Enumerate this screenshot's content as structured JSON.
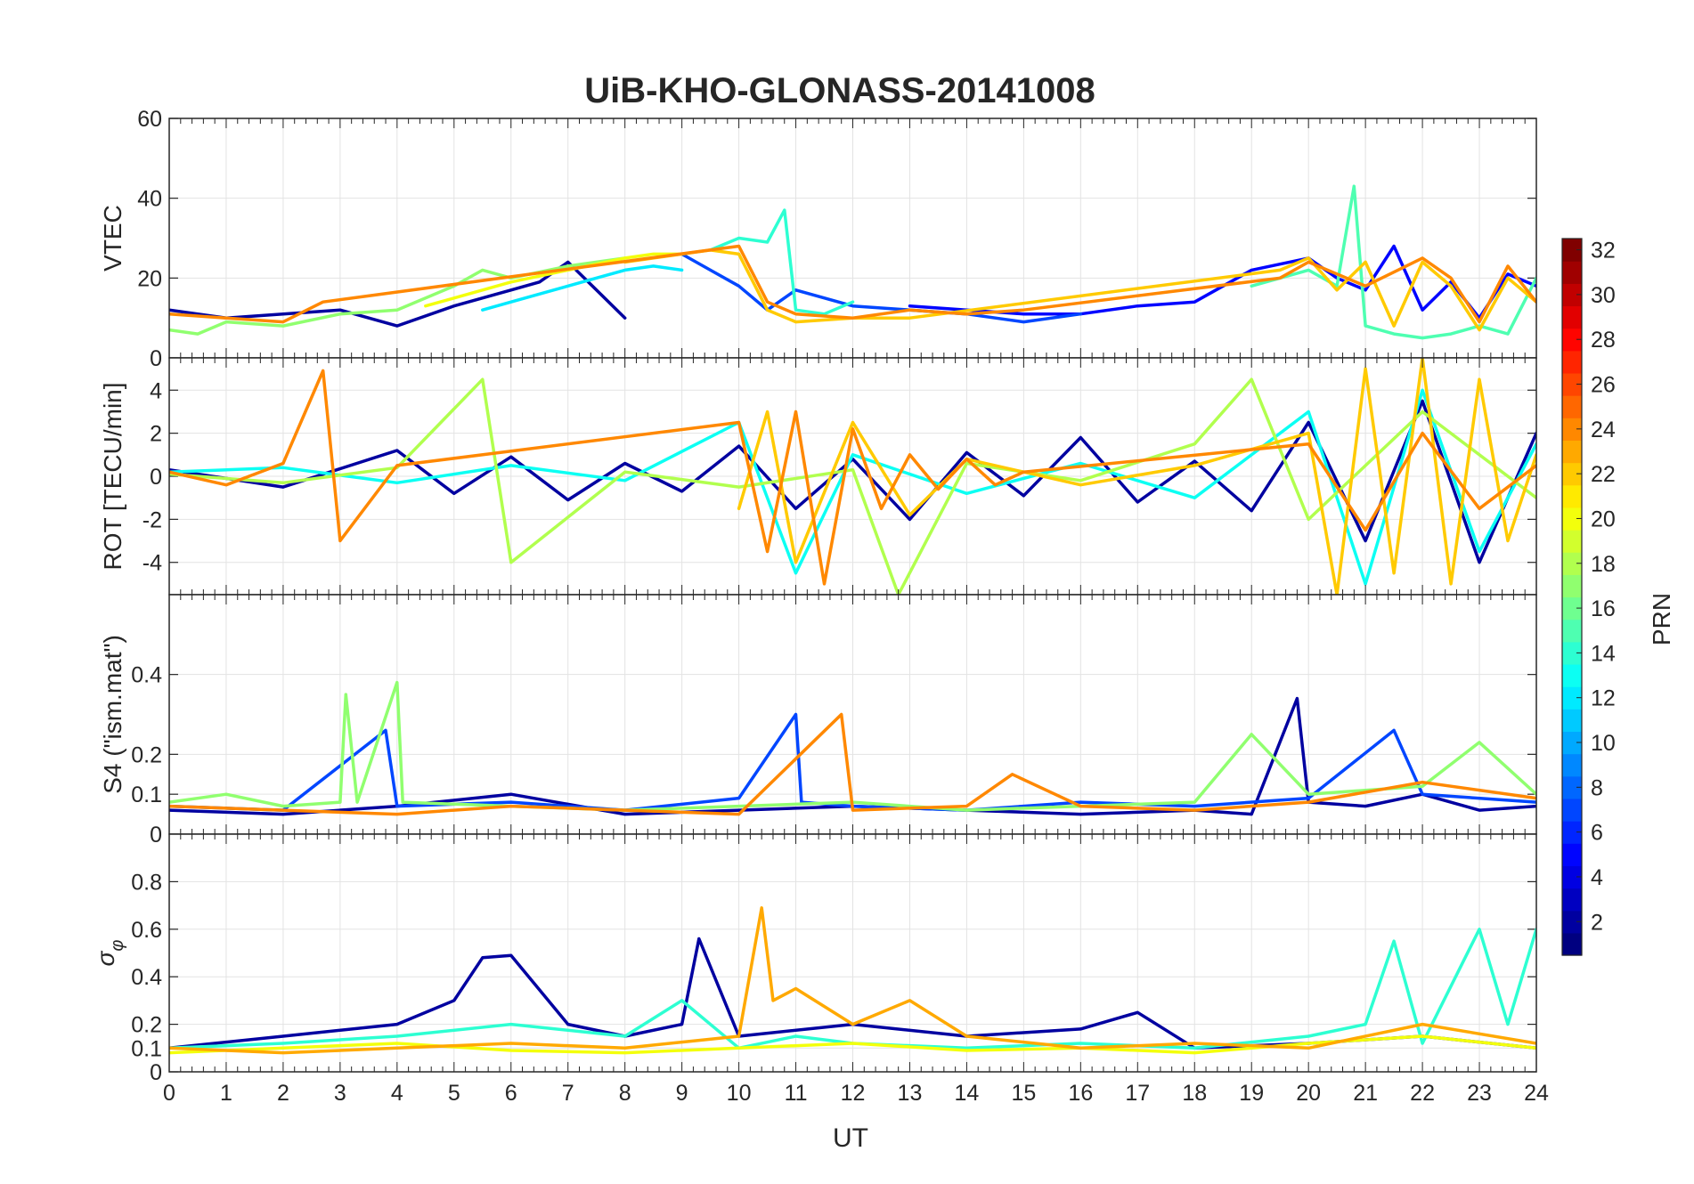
{
  "title": "UiB-KHO-GLONASS-20141008",
  "chart_data": [
    {
      "type": "line",
      "panel": "vtec",
      "ylabel": "VTEC",
      "ylim": [
        0,
        60
      ],
      "yticks": [
        "0",
        "20",
        "40",
        "60"
      ],
      "xlim": [
        0,
        24
      ],
      "grid": true,
      "series": [
        {
          "prn": 2,
          "x": [
            0,
            1,
            2,
            3,
            4,
            5,
            6,
            6.5,
            7,
            7.5,
            8
          ],
          "values": [
            12,
            10,
            11,
            12,
            8,
            13,
            17,
            19,
            24,
            17,
            10
          ]
        },
        {
          "prn": 5,
          "x": [
            13,
            14,
            15,
            16,
            17,
            18,
            19,
            20,
            20.5,
            21,
            21.5,
            22,
            22.5,
            23,
            23.5,
            24
          ],
          "values": [
            13,
            12,
            11,
            11,
            13,
            14,
            22,
            25,
            20,
            17,
            28,
            12,
            19,
            10,
            21,
            18
          ]
        },
        {
          "prn": 7,
          "x": [
            9,
            9.5,
            10,
            10.5,
            11,
            12,
            13,
            14,
            15,
            16
          ],
          "values": [
            26,
            22,
            18,
            12,
            17,
            13,
            12,
            11,
            9,
            11
          ]
        },
        {
          "prn": 12,
          "x": [
            5.5,
            6,
            7,
            7.5,
            8,
            8.5,
            9
          ],
          "values": [
            12,
            14,
            18,
            20,
            22,
            23,
            22
          ]
        },
        {
          "prn": 14,
          "x": [
            9.5,
            10,
            10.5,
            10.8,
            11,
            11.5,
            12
          ],
          "values": [
            27,
            30,
            29,
            37,
            12,
            11,
            14
          ]
        },
        {
          "prn": 15,
          "x": [
            19,
            20,
            20.5,
            20.8,
            21,
            21.5,
            22,
            22.5,
            23,
            23.5,
            24
          ],
          "values": [
            18,
            22,
            18,
            43,
            8,
            6,
            5,
            6,
            8,
            6,
            20
          ]
        },
        {
          "prn": 17,
          "x": [
            0,
            0.5,
            1,
            2,
            3,
            4,
            5,
            5.5,
            6,
            7,
            8
          ],
          "values": [
            7,
            6,
            9,
            8,
            11,
            12,
            18,
            22,
            20,
            23,
            25
          ]
        },
        {
          "prn": 20,
          "x": [
            4.5,
            5,
            6,
            7,
            8,
            8.5,
            9
          ],
          "values": [
            13,
            15,
            19,
            22,
            25,
            26,
            26
          ]
        },
        {
          "prn": 22,
          "x": [
            8,
            9,
            9.5,
            10,
            10.5,
            11,
            12,
            13,
            19.5,
            20,
            20.5,
            21,
            21.5,
            22,
            22.5,
            23,
            23.5,
            24
          ],
          "values": [
            24,
            26,
            27,
            26,
            12,
            9,
            10,
            10,
            22,
            25,
            17,
            24,
            8,
            24,
            18,
            7,
            20,
            14
          ]
        },
        {
          "prn": 24,
          "x": [
            0,
            1,
            2,
            2.7,
            10,
            10.5,
            11,
            12,
            13,
            14,
            15,
            19.5,
            20,
            21,
            22,
            22.5,
            23,
            23.5,
            24
          ],
          "values": [
            11,
            10,
            9,
            14,
            28,
            14,
            11,
            10,
            12,
            11,
            12,
            20,
            24,
            18,
            25,
            20,
            9,
            23,
            14
          ]
        }
      ]
    },
    {
      "type": "line",
      "panel": "rot",
      "ylabel": "ROT [TECU/min]",
      "ylim": [
        -5.5,
        5.5
      ],
      "yticks": [
        "-4",
        "-2",
        "0",
        "2",
        "4"
      ],
      "xlim": [
        0,
        24
      ],
      "grid": true,
      "series": [
        {
          "prn": 2,
          "x": [
            0,
            2,
            4,
            5,
            6,
            7,
            8,
            9,
            10,
            11,
            12,
            13,
            14,
            15,
            16,
            17,
            18,
            19,
            20,
            21,
            22,
            23,
            24
          ],
          "values": [
            0.3,
            -0.5,
            1.2,
            -0.8,
            0.9,
            -1.1,
            0.6,
            -0.7,
            1.4,
            -1.5,
            0.8,
            -2.0,
            1.1,
            -0.9,
            1.8,
            -1.2,
            0.7,
            -1.6,
            2.5,
            -3.0,
            3.5,
            -4.0,
            2.0
          ]
        },
        {
          "prn": 13,
          "x": [
            0,
            2,
            4,
            6,
            8,
            10,
            11,
            12,
            14,
            16,
            18,
            20,
            21,
            22,
            23,
            24
          ],
          "values": [
            0.2,
            0.4,
            -0.3,
            0.5,
            -0.2,
            2.5,
            -4.5,
            1.0,
            -0.8,
            0.6,
            -1.0,
            3.0,
            -5.0,
            4.0,
            -3.5,
            1.5
          ]
        },
        {
          "prn": 18,
          "x": [
            0,
            2,
            4,
            5.5,
            6,
            8,
            10,
            12,
            12.8,
            14,
            16,
            18,
            19,
            20,
            22,
            24
          ],
          "values": [
            0.1,
            -0.3,
            0.4,
            4.5,
            -4.0,
            0.2,
            -0.5,
            0.3,
            -5.5,
            0.6,
            -0.2,
            1.5,
            4.5,
            -2.0,
            3.0,
            -1.0
          ]
        },
        {
          "prn": 22,
          "x": [
            10,
            10.5,
            11,
            12,
            13,
            14,
            16,
            18,
            20,
            20.5,
            21,
            21.5,
            22,
            22.5,
            23,
            23.5,
            24
          ],
          "values": [
            -1.5,
            3.0,
            -4.0,
            2.5,
            -1.8,
            0.8,
            -0.4,
            0.5,
            2.0,
            -5.5,
            5.0,
            -4.5,
            5.5,
            -5.0,
            4.5,
            -3.0,
            1.0
          ]
        },
        {
          "prn": 24,
          "x": [
            0,
            1,
            2,
            2.7,
            3,
            4,
            10,
            10.5,
            11,
            11.5,
            12,
            12.5,
            13,
            13.5,
            14,
            14.5,
            15,
            20,
            21,
            22,
            23,
            24
          ],
          "values": [
            0.2,
            -0.4,
            0.6,
            4.9,
            -3.0,
            0.5,
            2.5,
            -3.5,
            3.0,
            -5.0,
            2.2,
            -1.5,
            1.0,
            -0.6,
            0.8,
            -0.4,
            0.2,
            1.5,
            -2.5,
            2.0,
            -1.5,
            0.5
          ]
        }
      ]
    },
    {
      "type": "line",
      "panel": "s4",
      "ylabel": "S4 (\"ism.mat\")",
      "ylim": [
        0,
        0.6
      ],
      "yticks": [
        "0",
        "0.1",
        "0.2",
        "0.4"
      ],
      "xlim": [
        0,
        24
      ],
      "grid": true,
      "series": [
        {
          "prn": 2,
          "x": [
            0,
            2,
            4,
            6,
            8,
            10,
            12,
            14,
            16,
            18,
            19,
            19.8,
            20,
            21,
            22,
            23,
            24
          ],
          "values": [
            0.06,
            0.05,
            0.07,
            0.1,
            0.05,
            0.06,
            0.07,
            0.06,
            0.05,
            0.06,
            0.05,
            0.34,
            0.08,
            0.07,
            0.1,
            0.06,
            0.07
          ]
        },
        {
          "prn": 7,
          "x": [
            0,
            2,
            3.8,
            4,
            6,
            8,
            10,
            11,
            11.1,
            12,
            14,
            16,
            18,
            20,
            21.5,
            22,
            24
          ],
          "values": [
            0.07,
            0.06,
            0.26,
            0.07,
            0.08,
            0.06,
            0.09,
            0.3,
            0.08,
            0.07,
            0.06,
            0.08,
            0.07,
            0.09,
            0.26,
            0.1,
            0.08
          ]
        },
        {
          "prn": 17,
          "x": [
            0,
            1,
            2,
            3,
            3.1,
            3.3,
            4,
            4.1,
            6,
            8,
            10,
            12,
            14,
            16,
            18,
            19,
            20,
            22,
            23,
            24
          ],
          "values": [
            0.08,
            0.1,
            0.07,
            0.08,
            0.35,
            0.08,
            0.38,
            0.08,
            0.07,
            0.06,
            0.07,
            0.08,
            0.06,
            0.07,
            0.08,
            0.25,
            0.1,
            0.12,
            0.23,
            0.1
          ]
        },
        {
          "prn": 24,
          "x": [
            0,
            2,
            4,
            6,
            8,
            10,
            11.8,
            12,
            14,
            14.8,
            16,
            18,
            20,
            22,
            24
          ],
          "values": [
            0.07,
            0.06,
            0.05,
            0.07,
            0.06,
            0.05,
            0.3,
            0.06,
            0.07,
            0.15,
            0.07,
            0.06,
            0.08,
            0.13,
            0.09
          ]
        }
      ]
    },
    {
      "type": "line",
      "panel": "sigma_phi",
      "ylabel": "σ",
      "ylabel_sub": "φ",
      "ylim": [
        0,
        1
      ],
      "yticks": [
        "0",
        "0.1",
        "0.2",
        "0.4",
        "0.6",
        "0.8"
      ],
      "xlim": [
        0,
        24
      ],
      "xticks": [
        "0",
        "1",
        "2",
        "3",
        "4",
        "5",
        "6",
        "7",
        "8",
        "9",
        "10",
        "11",
        "12",
        "13",
        "14",
        "15",
        "16",
        "17",
        "18",
        "19",
        "20",
        "21",
        "22",
        "23",
        "24"
      ],
      "xlabel": "UT",
      "grid": true,
      "series": [
        {
          "prn": 2,
          "x": [
            0,
            2,
            4,
            5,
            5.5,
            6,
            7,
            8,
            9,
            9.3,
            10,
            12,
            14,
            16,
            17,
            18,
            20,
            22,
            24
          ],
          "values": [
            0.1,
            0.15,
            0.2,
            0.3,
            0.48,
            0.49,
            0.2,
            0.15,
            0.2,
            0.56,
            0.15,
            0.2,
            0.15,
            0.18,
            0.25,
            0.1,
            0.12,
            0.15,
            0.1
          ]
        },
        {
          "prn": 14,
          "x": [
            0,
            2,
            4,
            6,
            8,
            9,
            10,
            11,
            12,
            14,
            16,
            18,
            20,
            21,
            21.5,
            22,
            23,
            23.5,
            24
          ],
          "values": [
            0.1,
            0.12,
            0.15,
            0.2,
            0.15,
            0.3,
            0.1,
            0.15,
            0.12,
            0.1,
            0.12,
            0.1,
            0.15,
            0.2,
            0.55,
            0.12,
            0.6,
            0.2,
            0.6
          ]
        },
        {
          "prn": 20,
          "x": [
            0,
            2,
            4,
            6,
            8,
            10,
            12,
            14,
            16,
            18,
            20,
            22,
            24
          ],
          "values": [
            0.08,
            0.1,
            0.12,
            0.09,
            0.08,
            0.1,
            0.12,
            0.09,
            0.1,
            0.08,
            0.12,
            0.15,
            0.1
          ]
        },
        {
          "prn": 23,
          "x": [
            0,
            2,
            4,
            6,
            8,
            10,
            10.4,
            10.6,
            11,
            12,
            13,
            14,
            16,
            18,
            20,
            22,
            24
          ],
          "values": [
            0.1,
            0.08,
            0.1,
            0.12,
            0.1,
            0.15,
            0.69,
            0.3,
            0.35,
            0.2,
            0.3,
            0.15,
            0.1,
            0.12,
            0.1,
            0.2,
            0.12
          ]
        }
      ]
    }
  ],
  "colorbar": {
    "label": "PRN",
    "min": 1,
    "max": 32,
    "ticks": [
      "2",
      "4",
      "6",
      "8",
      "10",
      "12",
      "14",
      "16",
      "18",
      "20",
      "22",
      "24",
      "26",
      "28",
      "30",
      "32"
    ],
    "colormap": "jet"
  }
}
